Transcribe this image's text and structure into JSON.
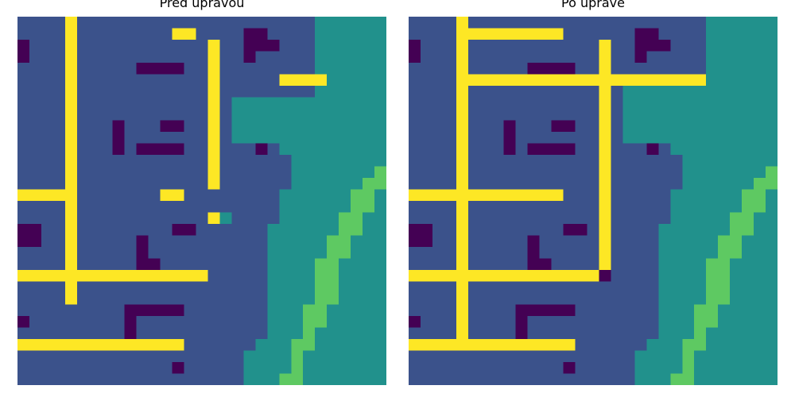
{
  "colors": {
    "0": "#440154",
    "1": "#3b528b",
    "2": "#21918c",
    "3": "#5ec962",
    "4": "#fde725"
  },
  "panels": [
    {
      "title": "Před úpravou",
      "rows": [
        "1111411111111111111111111222222",
        "1111411111111441111001111222222",
        "0111411111111111411000111222222",
        "0111411111111111411011111222222",
        "1111411111000011411111111222222",
        "1111411111111111411111444422222",
        "1111411111111111411111111222222",
        "1111411111111111412222222222222",
        "1111411111111111412222222222222",
        "1111411101110011412222222222222",
        "1111411101111111412222222222222",
        "1111411101000011411101222222222",
        "1111411111111111411111122222222",
        "1111411111111111411111122222223",
        "1111411111111111411111122222233",
        "4444411111114411111111222222332",
        "1111411111111111111111222222332",
        "1111411111111111421111222223322",
        "0011411111111001111112222223322",
        "0011411111011111111112222233222",
        "1111411111011111111112222233222",
        "1111411111001111111112222332222",
        "4444444444444444111112222332222",
        "1111411111111111111112222332222",
        "1111411111111111111112222332222",
        "1111111110000011111112223322222",
        "0111111110111111111112223322222",
        "1111111110111111111112223222222",
        "4444444444444411111122233222222",
        "1111111111111111111222232222222",
        "1111111111111011111222232222222",
        "1111111111111111111222332222222"
      ]
    },
    {
      "title": "Po úpravě",
      "rows": [
        "1111411111111111111111111222222",
        "1111444444444111111001111222222",
        "0111411111111111411000111222222",
        "0111411111111111411011111222222",
        "1111411111000011411111111222222",
        "1111444444444444444444444222222",
        "1111411111111111412222222222222",
        "1111411111111111412222222222222",
        "1111411111111111412222222222222",
        "1111411101110011412222222222222",
        "1111411101111111412222222222222",
        "1111411101000011411101222222222",
        "1111411111111111411111122222222",
        "1111411111111111411111122222223",
        "1111411111111111411111122222233",
        "4444444444444111411111222222332",
        "1111411111111111411111222222332",
        "1111411111111111411111222223322",
        "0011411111111001411112222223322",
        "0011411111011111411112222233222",
        "1111411111011111411112222233222",
        "1111411111001111411112222332222",
        "4444444444444444011112222332222",
        "1111411111111111111112222332222",
        "1111411111111111111112222332222",
        "1111411110000011111112223322222",
        "0111411110111111111112223322222",
        "1111411110111111111112223222222",
        "4444444444444411111122233222222",
        "1111111111111111111222232222222",
        "1111111111111011111222232222222",
        "1111111111111111111222332222222"
      ]
    }
  ]
}
